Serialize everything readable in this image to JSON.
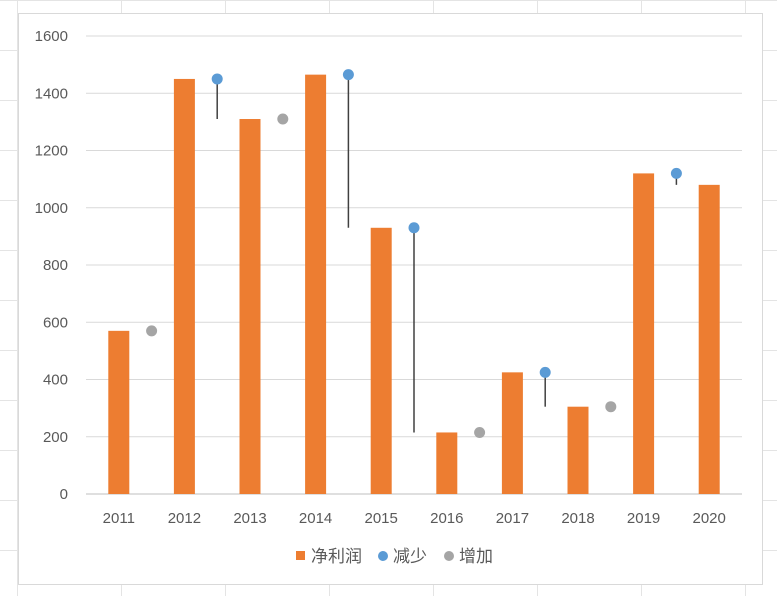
{
  "chart_data": {
    "type": "bar",
    "categories": [
      "2011",
      "2012",
      "2013",
      "2014",
      "2015",
      "2016",
      "2017",
      "2018",
      "2019",
      "2020"
    ],
    "series": [
      {
        "name": "净利润",
        "type": "bar",
        "color": "#ED7D31",
        "values": [
          570,
          1450,
          1310,
          1465,
          930,
          215,
          425,
          305,
          1120,
          1080
        ]
      },
      {
        "name": "减少",
        "type": "scatter",
        "color": "#5B9BD5",
        "points": [
          {
            "after": "2012",
            "y": 1450,
            "drop_to": 1310
          },
          {
            "after": "2014",
            "y": 1465,
            "drop_to": 930
          },
          {
            "after": "2015",
            "y": 930,
            "drop_to": 215
          },
          {
            "after": "2017",
            "y": 425,
            "drop_to": 305
          },
          {
            "after": "2019",
            "y": 1120,
            "drop_to": 1080
          }
        ]
      },
      {
        "name": "增加",
        "type": "scatter",
        "color": "#A5A5A5",
        "points": [
          {
            "after": "2011",
            "y": 570
          },
          {
            "after": "2013",
            "y": 1310
          },
          {
            "after": "2016",
            "y": 215
          },
          {
            "after": "2018",
            "y": 305
          }
        ]
      }
    ],
    "y_ticks": [
      0,
      200,
      400,
      600,
      800,
      1000,
      1200,
      1400,
      1600
    ],
    "ylim": [
      0,
      1600
    ],
    "grid": true,
    "legend": "bottom",
    "title": "",
    "xlabel": "",
    "ylabel": ""
  }
}
